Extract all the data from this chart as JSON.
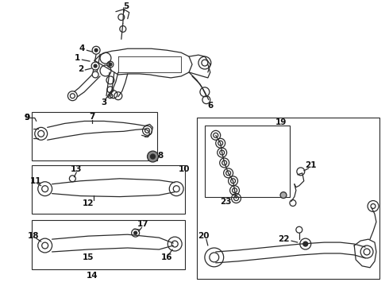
{
  "bg_color": "#ffffff",
  "lc": "#2a2a2a",
  "fig_width": 4.9,
  "fig_height": 3.6,
  "dpi": 100,
  "label_fs": 7.5
}
